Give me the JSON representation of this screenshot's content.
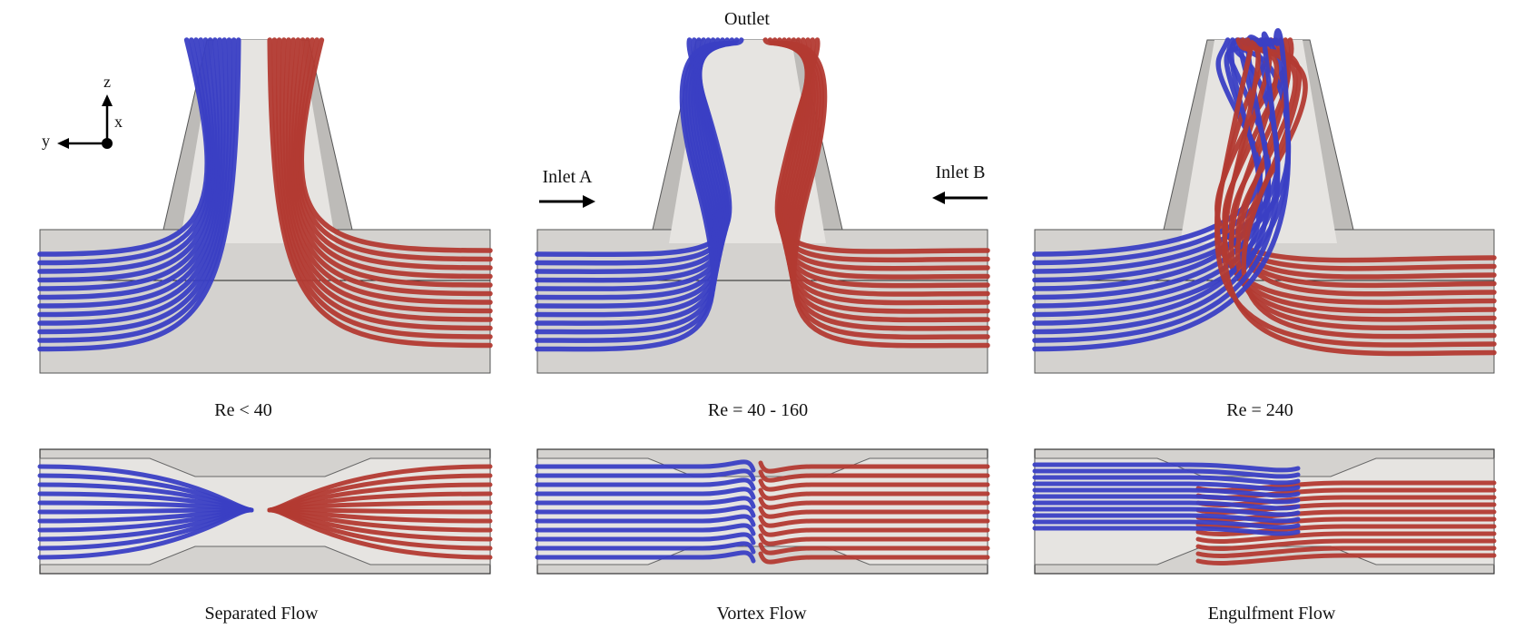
{
  "labels": {
    "outlet": "Outlet",
    "inlet_a": "Inlet A",
    "inlet_b": "Inlet B"
  },
  "axes": {
    "z": "z",
    "x": "x",
    "y": "y"
  },
  "panels": [
    {
      "re": "Re < 40",
      "regime": "Separated Flow"
    },
    {
      "re": "Re = 40 - 160",
      "regime": "Vortex Flow"
    },
    {
      "re": "Re = 240",
      "regime": "Engulfment Flow"
    }
  ],
  "colors": {
    "inlet_a_stream": "#3a3fc4",
    "inlet_b_stream": "#b33a32",
    "channel": "#d4d2cf",
    "channel_light": "#e6e4e1"
  }
}
